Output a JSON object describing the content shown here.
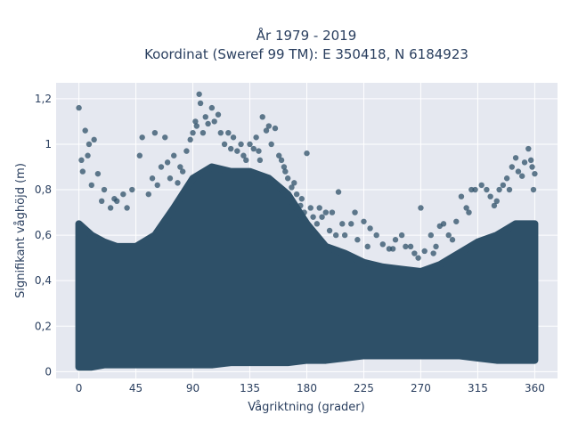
{
  "chart_data": {
    "type": "scatter",
    "title_line1": "År 1979 - 2019",
    "title_line2": "Koordinat (Sweref 99 TM): E 350418, N 6184923",
    "xlabel": "Vågriktning (grader)",
    "ylabel": "Signifikant våghöjd (m)",
    "xlim": [
      -18,
      378
    ],
    "ylim": [
      -0.03,
      1.27
    ],
    "xticks": [
      0,
      45,
      90,
      135,
      180,
      225,
      270,
      315,
      360
    ],
    "xtick_labels": [
      "0",
      "45",
      "90",
      "135",
      "180",
      "225",
      "270",
      "315",
      "360"
    ],
    "yticks": [
      0,
      0.2,
      0.4,
      0.6,
      0.8,
      1,
      1.2
    ],
    "ytick_labels": [
      "0",
      "0,2",
      "0,4",
      "0,6",
      "0,8",
      "1",
      "1,2"
    ],
    "grid": true,
    "marker_color": "#2e5068",
    "plot_bg": "#e5e8f0",
    "dense_envelope": {
      "x": [
        0,
        10,
        20,
        30,
        45,
        60,
        75,
        90,
        105,
        120,
        135,
        150,
        165,
        180,
        195,
        210,
        225,
        240,
        255,
        270,
        285,
        300,
        315,
        330,
        345,
        360
      ],
      "y_low": [
        0.02,
        0.02,
        0.03,
        0.03,
        0.03,
        0.03,
        0.03,
        0.03,
        0.03,
        0.04,
        0.04,
        0.04,
        0.04,
        0.05,
        0.05,
        0.06,
        0.07,
        0.07,
        0.07,
        0.07,
        0.07,
        0.07,
        0.06,
        0.05,
        0.05,
        0.05
      ],
      "y_high": [
        0.65,
        0.6,
        0.57,
        0.55,
        0.55,
        0.6,
        0.72,
        0.85,
        0.9,
        0.88,
        0.88,
        0.85,
        0.78,
        0.65,
        0.55,
        0.52,
        0.48,
        0.46,
        0.45,
        0.44,
        0.47,
        0.52,
        0.57,
        0.6,
        0.65,
        0.65
      ]
    },
    "outliers": [
      [
        0,
        1.16
      ],
      [
        2,
        0.93
      ],
      [
        5,
        1.06
      ],
      [
        8,
        1.0
      ],
      [
        12,
        1.02
      ],
      [
        15,
        0.87
      ],
      [
        20,
        0.8
      ],
      [
        25,
        0.72
      ],
      [
        30,
        0.75
      ],
      [
        35,
        0.78
      ],
      [
        42,
        0.8
      ],
      [
        48,
        0.95
      ],
      [
        50,
        1.03
      ],
      [
        55,
        0.78
      ],
      [
        60,
        1.05
      ],
      [
        62,
        0.82
      ],
      [
        65,
        0.9
      ],
      [
        68,
        1.03
      ],
      [
        70,
        0.92
      ],
      [
        75,
        0.95
      ],
      [
        78,
        0.83
      ],
      [
        80,
        0.9
      ],
      [
        85,
        0.97
      ],
      [
        88,
        1.02
      ],
      [
        90,
        1.05
      ],
      [
        92,
        1.1
      ],
      [
        93,
        1.08
      ],
      [
        95,
        1.22
      ],
      [
        96,
        1.18
      ],
      [
        100,
        1.12
      ],
      [
        102,
        1.09
      ],
      [
        105,
        1.16
      ],
      [
        107,
        1.1
      ],
      [
        110,
        1.13
      ],
      [
        112,
        1.05
      ],
      [
        115,
        1.0
      ],
      [
        118,
        1.05
      ],
      [
        120,
        0.98
      ],
      [
        125,
        0.97
      ],
      [
        128,
        1.0
      ],
      [
        132,
        0.93
      ],
      [
        135,
        1.0
      ],
      [
        138,
        0.98
      ],
      [
        140,
        1.03
      ],
      [
        143,
        0.93
      ],
      [
        145,
        1.12
      ],
      [
        148,
        1.06
      ],
      [
        150,
        1.08
      ],
      [
        152,
        1.0
      ],
      [
        155,
        1.07
      ],
      [
        158,
        0.95
      ],
      [
        160,
        0.93
      ],
      [
        162,
        0.9
      ],
      [
        165,
        0.85
      ],
      [
        168,
        0.81
      ],
      [
        170,
        0.83
      ],
      [
        172,
        0.78
      ],
      [
        175,
        0.73
      ],
      [
        178,
        0.7
      ],
      [
        180,
        0.96
      ],
      [
        183,
        0.72
      ],
      [
        185,
        0.68
      ],
      [
        190,
        0.72
      ],
      [
        192,
        0.68
      ],
      [
        195,
        0.7
      ],
      [
        198,
        0.62
      ],
      [
        200,
        0.7
      ],
      [
        203,
        0.6
      ],
      [
        205,
        0.79
      ],
      [
        210,
        0.6
      ],
      [
        215,
        0.65
      ],
      [
        220,
        0.58
      ],
      [
        225,
        0.66
      ],
      [
        230,
        0.63
      ],
      [
        235,
        0.6
      ],
      [
        240,
        0.56
      ],
      [
        245,
        0.54
      ],
      [
        250,
        0.58
      ],
      [
        255,
        0.6
      ],
      [
        258,
        0.55
      ],
      [
        262,
        0.55
      ],
      [
        265,
        0.52
      ],
      [
        270,
        0.72
      ],
      [
        273,
        0.53
      ],
      [
        278,
        0.6
      ],
      [
        282,
        0.55
      ],
      [
        285,
        0.64
      ],
      [
        288,
        0.65
      ],
      [
        292,
        0.6
      ],
      [
        298,
        0.66
      ],
      [
        302,
        0.77
      ],
      [
        306,
        0.72
      ],
      [
        310,
        0.8
      ],
      [
        313,
        0.8
      ],
      [
        318,
        0.82
      ],
      [
        322,
        0.8
      ],
      [
        325,
        0.77
      ],
      [
        328,
        0.73
      ],
      [
        332,
        0.8
      ],
      [
        335,
        0.82
      ],
      [
        338,
        0.85
      ],
      [
        342,
        0.9
      ],
      [
        345,
        0.94
      ],
      [
        347,
        0.88
      ],
      [
        350,
        0.86
      ],
      [
        352,
        0.92
      ],
      [
        355,
        0.98
      ],
      [
        357,
        0.93
      ],
      [
        358,
        0.9
      ],
      [
        360,
        0.87
      ],
      [
        359,
        0.8
      ],
      [
        3,
        0.88
      ],
      [
        7,
        0.95
      ],
      [
        10,
        0.82
      ],
      [
        18,
        0.75
      ],
      [
        28,
        0.76
      ],
      [
        38,
        0.72
      ],
      [
        58,
        0.85
      ],
      [
        72,
        0.85
      ],
      [
        82,
        0.88
      ],
      [
        98,
        1.05
      ],
      [
        122,
        1.03
      ],
      [
        130,
        0.95
      ],
      [
        142,
        0.97
      ],
      [
        163,
        0.88
      ],
      [
        176,
        0.76
      ],
      [
        188,
        0.65
      ],
      [
        208,
        0.65
      ],
      [
        218,
        0.7
      ],
      [
        228,
        0.55
      ],
      [
        248,
        0.54
      ],
      [
        268,
        0.5
      ],
      [
        280,
        0.52
      ],
      [
        295,
        0.58
      ],
      [
        308,
        0.7
      ],
      [
        330,
        0.75
      ],
      [
        340,
        0.8
      ]
    ]
  }
}
